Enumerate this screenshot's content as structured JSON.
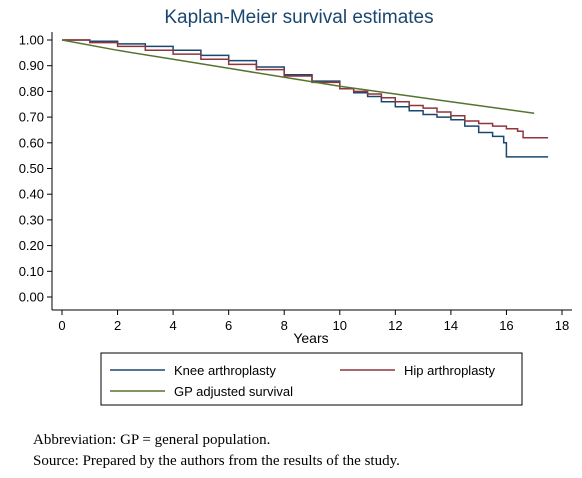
{
  "colors": {
    "knee": "#1a476f",
    "hip": "#90353b",
    "gp": "#55752f",
    "title": "#1a476f",
    "plot_bg": "#ffffff",
    "page_bg": "#ffffff"
  },
  "chart_data": {
    "type": "line",
    "title": "Kaplan-Meier survival estimates",
    "xlabel": "Years",
    "ylabel": "",
    "xlim": [
      0,
      18
    ],
    "ylim": [
      0,
      1
    ],
    "x_ticks": [
      "0",
      "2",
      "4",
      "6",
      "8",
      "10",
      "12",
      "14",
      "16",
      "18"
    ],
    "y_ticks": [
      "0.00",
      "0.10",
      "0.20",
      "0.30",
      "0.40",
      "0.50",
      "0.60",
      "0.70",
      "0.80",
      "0.90",
      "1.00"
    ],
    "grid": false,
    "legend_position": "bottom",
    "step": true,
    "series": [
      {
        "name": "Knee arthroplasty",
        "color": "#1a476f",
        "x": [
          0,
          1,
          2,
          3,
          4,
          5,
          6,
          7,
          8,
          9,
          10,
          10.5,
          11,
          11.5,
          12,
          12.5,
          13,
          13.5,
          14,
          14.5,
          15,
          15.5,
          15.9,
          16,
          16.5,
          17.5
        ],
        "y": [
          1.0,
          0.995,
          0.985,
          0.975,
          0.96,
          0.94,
          0.92,
          0.895,
          0.865,
          0.84,
          0.81,
          0.795,
          0.78,
          0.76,
          0.74,
          0.725,
          0.71,
          0.7,
          0.69,
          0.665,
          0.64,
          0.625,
          0.6,
          0.545,
          0.545,
          0.545
        ]
      },
      {
        "name": "Hip arthroplasty",
        "color": "#90353b",
        "x": [
          0,
          1,
          2,
          3,
          4,
          5,
          6,
          7,
          8,
          9,
          10,
          10.5,
          11,
          11.5,
          12,
          12.5,
          13,
          13.5,
          14,
          14.5,
          15,
          15.5,
          16,
          16.4,
          16.6,
          17.5
        ],
        "y": [
          1.0,
          0.99,
          0.975,
          0.96,
          0.945,
          0.925,
          0.905,
          0.885,
          0.86,
          0.835,
          0.81,
          0.8,
          0.79,
          0.775,
          0.76,
          0.745,
          0.735,
          0.72,
          0.705,
          0.685,
          0.675,
          0.665,
          0.655,
          0.645,
          0.62,
          0.62
        ]
      },
      {
        "name": "GP adjusted survival",
        "color": "#55752f",
        "x": [
          0,
          2,
          4,
          6,
          8,
          10,
          12,
          14,
          16,
          17
        ],
        "y": [
          1.0,
          0.96,
          0.925,
          0.89,
          0.855,
          0.82,
          0.79,
          0.76,
          0.73,
          0.715
        ]
      }
    ]
  },
  "footnotes": {
    "line1": "Abbreviation: GP = general population.",
    "line2": "Source: Prepared by the authors from the results of the study."
  }
}
